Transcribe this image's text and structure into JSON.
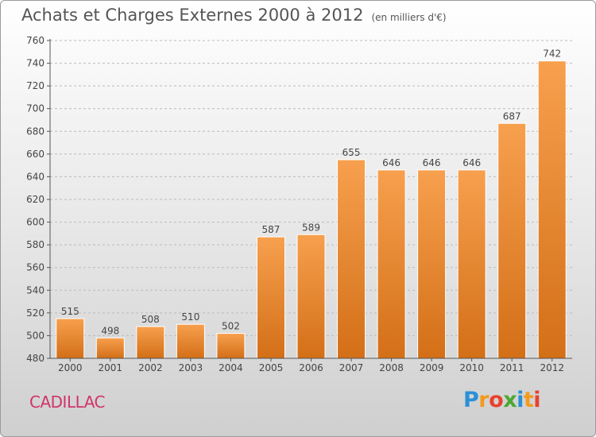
{
  "header": {
    "title": "Achats et Charges Externes 2000 à 2012",
    "unit": "(en milliers d'€)"
  },
  "footer": {
    "city": "CADILLAC",
    "logo": {
      "text": "Proxiti",
      "letters": [
        "P",
        "r",
        "o",
        "x",
        "i",
        "t",
        "i"
      ],
      "colors": [
        "#2a8fd6",
        "#f29a1f",
        "#e8412e",
        "#4aa832",
        "#2a8fd6",
        "#f29a1f",
        "#e8412e"
      ]
    }
  },
  "colors": {
    "bar_top": "#f7a04e",
    "bar_bottom": "#d36f17",
    "axis": "#555555",
    "grid": "#bbbbbb"
  },
  "chart_data": {
    "type": "bar",
    "title": "Achats et Charges Externes 2000 à 2012",
    "subtitle": "(en milliers d'€)",
    "categories": [
      "2000",
      "2001",
      "2002",
      "2003",
      "2004",
      "2005",
      "2006",
      "2007",
      "2008",
      "2009",
      "2010",
      "2011",
      "2012"
    ],
    "values": [
      515,
      498,
      508,
      510,
      502,
      587,
      589,
      655,
      646,
      646,
      646,
      687,
      742
    ],
    "ylim": [
      480,
      760
    ],
    "yticks": [
      480,
      500,
      520,
      540,
      560,
      580,
      600,
      620,
      640,
      660,
      680,
      700,
      720,
      740,
      760
    ],
    "grid": "horizontal-dashed",
    "legend": "none"
  }
}
